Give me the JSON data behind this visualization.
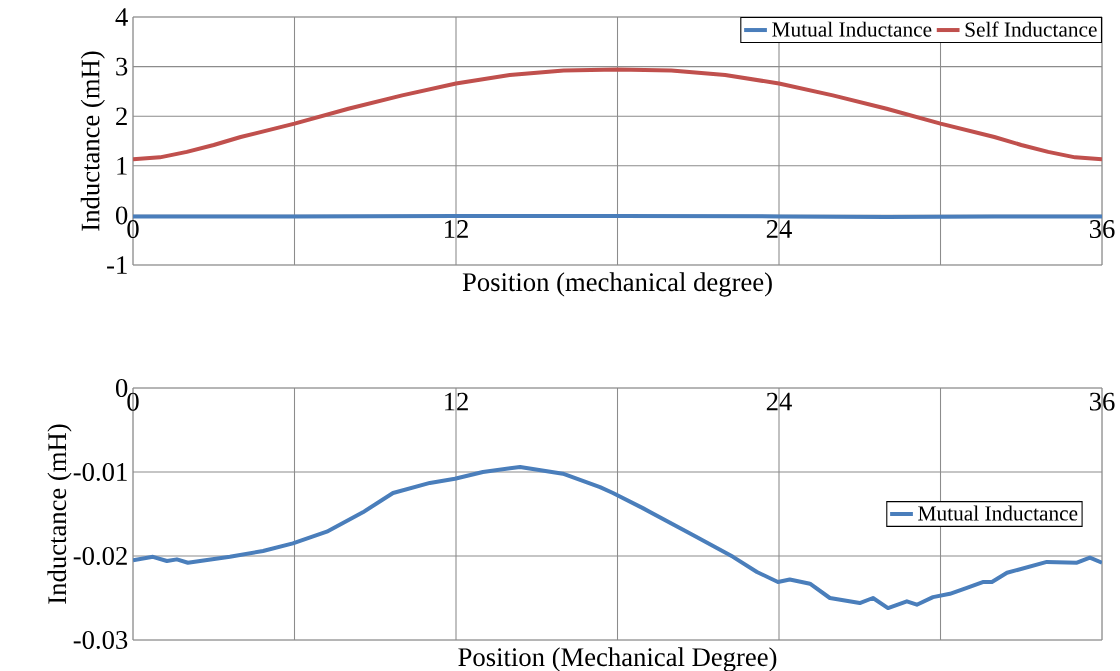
{
  "chart_data": [
    {
      "type": "line",
      "xlabel": "Position (mechanical degree)",
      "ylabel": "Inductance (mH)",
      "xlim": [
        0,
        36
      ],
      "ylim": [
        -1,
        4
      ],
      "xticks": [
        0,
        {
          "value": 6,
          "label": null
        },
        12,
        {
          "value": 18,
          "label": null
        },
        24,
        {
          "value": 30,
          "label": null
        },
        36
      ],
      "yticks": [
        -1,
        0,
        1,
        2,
        3,
        4
      ],
      "grid": true,
      "legend": "top right",
      "series": [
        {
          "name": "Mutual Inductance",
          "color": "#4a7ebb",
          "x": [
            0,
            6,
            12,
            14.4,
            18,
            24,
            28,
            32,
            36
          ],
          "values": [
            -0.02,
            -0.02,
            -0.01,
            -0.01,
            -0.01,
            -0.02,
            -0.03,
            -0.02,
            -0.02
          ]
        },
        {
          "name": "Self Inductance",
          "color": "#c0504d",
          "x": [
            0,
            1,
            2,
            3,
            4,
            6,
            8,
            10,
            12,
            14,
            16,
            18,
            20,
            22,
            24,
            26,
            28,
            30,
            32,
            33,
            34,
            35,
            36
          ],
          "values": [
            1.13,
            1.17,
            1.28,
            1.42,
            1.58,
            1.85,
            2.15,
            2.42,
            2.66,
            2.83,
            2.92,
            2.94,
            2.92,
            2.83,
            2.66,
            2.42,
            2.15,
            1.85,
            1.58,
            1.42,
            1.28,
            1.17,
            1.13
          ]
        }
      ]
    },
    {
      "type": "line",
      "xlabel": "Position (Mechanical Degree)",
      "ylabel": "Inductance (mH)",
      "xlim": [
        0,
        36
      ],
      "ylim": [
        -0.03,
        0
      ],
      "xticks": [
        0,
        {
          "value": 6,
          "label": null
        },
        12,
        {
          "value": 18,
          "label": null
        },
        24,
        {
          "value": 30,
          "label": null
        },
        36
      ],
      "yticks": [
        -0.03,
        -0.02,
        -0.01,
        0
      ],
      "grid": true,
      "legend": "right",
      "series": [
        {
          "name": "Mutual Inductance",
          "color": "#4a7ebb",
          "x": [
            0,
            0.74,
            1.26,
            1.63,
            2.04,
            3.6,
            4.83,
            5.94,
            7.2,
            8.54,
            9.66,
            11.03,
            11.96,
            13.0,
            14.38,
            15.97,
            17.35,
            17.83,
            18.94,
            20.8,
            22.29,
            23.18,
            23.96,
            24.4,
            25.15,
            25.89,
            27.0,
            27.49,
            28.05,
            28.75,
            29.12,
            29.72,
            30.35,
            30.98,
            31.57,
            31.91,
            32.47,
            33.95,
            35.07,
            35.55,
            36
          ],
          "values": [
            -0.0205,
            -0.0201,
            -0.0206,
            -0.0204,
            -0.0208,
            -0.0201,
            -0.0194,
            -0.0185,
            -0.0171,
            -0.0148,
            -0.0125,
            -0.0113,
            -0.0108,
            -0.01,
            -0.0094,
            -0.0102,
            -0.0118,
            -0.0125,
            -0.0143,
            -0.0175,
            -0.0201,
            -0.0219,
            -0.0231,
            -0.0228,
            -0.0233,
            -0.025,
            -0.0256,
            -0.025,
            -0.0262,
            -0.0254,
            -0.0258,
            -0.0249,
            -0.0245,
            -0.0238,
            -0.0231,
            -0.0231,
            -0.022,
            -0.0207,
            -0.0208,
            -0.0202,
            -0.0208
          ]
        }
      ]
    }
  ]
}
